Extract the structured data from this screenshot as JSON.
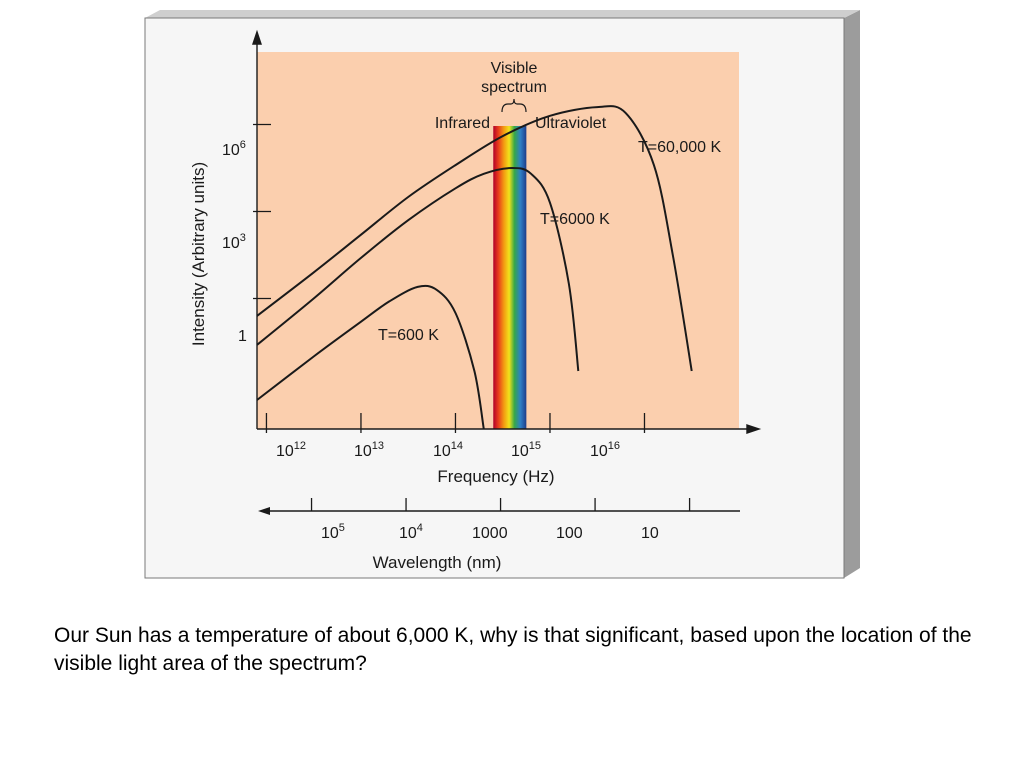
{
  "colors": {
    "plot_bg": "#fbcfae",
    "frame_bg": "#f6f6f6",
    "frame_side": "#9c9c9c",
    "curve": "#1a1a1a"
  },
  "chart_data": {
    "type": "line",
    "title": "",
    "xlabel": "Frequency (Hz)",
    "ylabel": "Intensity (Arbitrary units)",
    "x_scale": "log",
    "x_ticks": [
      {
        "base": "10",
        "exp": "12"
      },
      {
        "base": "10",
        "exp": "13"
      },
      {
        "base": "10",
        "exp": "14"
      },
      {
        "base": "10",
        "exp": "15"
      },
      {
        "base": "10",
        "exp": "16"
      }
    ],
    "y_ticks": [
      {
        "base": "1",
        "exp": ""
      },
      {
        "base": "10",
        "exp": "3"
      },
      {
        "base": "10",
        "exp": "6"
      }
    ],
    "secondary_x": {
      "label": "Wavelength (nm)",
      "direction": "decreasing-right",
      "ticks": [
        {
          "base": "10",
          "exp": "5"
        },
        {
          "base": "10",
          "exp": "4"
        },
        {
          "base": "1000",
          "exp": ""
        },
        {
          "base": "100",
          "exp": ""
        },
        {
          "base": "10",
          "exp": ""
        }
      ]
    },
    "series": [
      {
        "name": "T=600 K",
        "x": [
          11.9,
          12.5,
          13.0,
          13.3,
          13.6,
          13.8,
          14.0,
          14.2,
          14.3
        ],
        "y": [
          -3.5,
          -2.0,
          -0.8,
          -0.1,
          0.4,
          0.3,
          -0.5,
          -2.5,
          -4.5
        ]
      },
      {
        "name": "T=6000 K",
        "x": [
          11.9,
          12.5,
          13.0,
          13.5,
          14.0,
          14.3,
          14.6,
          14.8,
          15.0,
          15.2,
          15.3
        ],
        "y": [
          -1.6,
          0.0,
          1.4,
          2.7,
          3.8,
          4.3,
          4.5,
          4.3,
          3.3,
          0.5,
          -2.5
        ]
      },
      {
        "name": "T=60,000 K",
        "x": [
          11.9,
          12.5,
          13.0,
          13.5,
          14.0,
          14.5,
          15.0,
          15.5,
          15.8,
          16.1,
          16.3,
          16.5
        ],
        "y": [
          -0.6,
          0.9,
          2.2,
          3.5,
          4.6,
          5.6,
          6.3,
          6.6,
          6.4,
          4.6,
          1.5,
          -2.5
        ]
      }
    ],
    "annotations": {
      "visible": "Visible",
      "spectrum": "spectrum",
      "infrared": "Infrared",
      "ultraviolet": "Ultraviolet"
    },
    "visible_band_x": [
      14.4,
      14.75
    ],
    "xlim": [
      11.9,
      17.0
    ],
    "ylim": [
      -4.5,
      8.5
    ],
    "grid": false,
    "legend": "none"
  },
  "caption": "Our Sun has a temperature of about 6,000 K, why is that significant, based upon the location of the visible light area of the spectrum?"
}
